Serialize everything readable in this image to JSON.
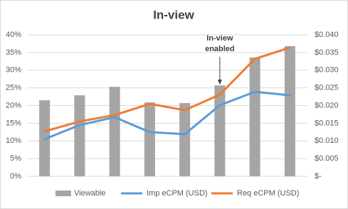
{
  "chart_data": {
    "type": "bar",
    "title": "In-view",
    "annotation": [
      "In-view",
      "enabled"
    ],
    "categories": [
      null,
      null,
      null,
      null,
      null,
      null,
      null,
      null
    ],
    "series": [
      {
        "name": "Viewable",
        "type": "bar",
        "color": "#a5a5a5",
        "values": [
          21.5,
          22.9,
          25.3,
          20.9,
          20.7,
          25.7,
          33.6,
          36.8
        ]
      },
      {
        "name": "Imp eCPM (USD)",
        "type": "line",
        "axis": "y2",
        "color": "#5b9bd5",
        "values": [
          0.0105,
          0.0145,
          0.0167,
          0.0125,
          0.0119,
          0.0201,
          0.0239,
          0.0229
        ]
      },
      {
        "name": "Req eCPM (USD)",
        "type": "line",
        "axis": "y2",
        "color": "#ed7d31",
        "values": [
          0.0127,
          0.0155,
          0.0173,
          0.0205,
          0.0187,
          0.0231,
          0.0332,
          0.0364
        ]
      }
    ],
    "ylim": [
      0,
      40
    ],
    "yticks": [
      {
        "value": 0,
        "label": "0%"
      },
      {
        "value": 5,
        "label": "5%"
      },
      {
        "value": 10,
        "label": "10%"
      },
      {
        "value": 15,
        "label": "15%"
      },
      {
        "value": 20,
        "label": "20%"
      },
      {
        "value": 25,
        "label": "25%"
      },
      {
        "value": 30,
        "label": "30%"
      },
      {
        "value": 35,
        "label": "35%"
      },
      {
        "value": 40,
        "label": "40%"
      }
    ],
    "y2lim": [
      0,
      0.04
    ],
    "y2ticks": [
      {
        "value": 0,
        "label": "$-"
      },
      {
        "value": 0.005,
        "label": "$0.005"
      },
      {
        "value": 0.01,
        "label": "$0.010"
      },
      {
        "value": 0.015,
        "label": "$0.015"
      },
      {
        "value": 0.02,
        "label": "$0.020"
      },
      {
        "value": 0.025,
        "label": "$0.025"
      },
      {
        "value": 0.03,
        "label": "$0.030"
      },
      {
        "value": 0.035,
        "label": "$0.035"
      },
      {
        "value": 0.04,
        "label": "$0.040"
      }
    ],
    "grid": true,
    "legend": "bottom"
  }
}
